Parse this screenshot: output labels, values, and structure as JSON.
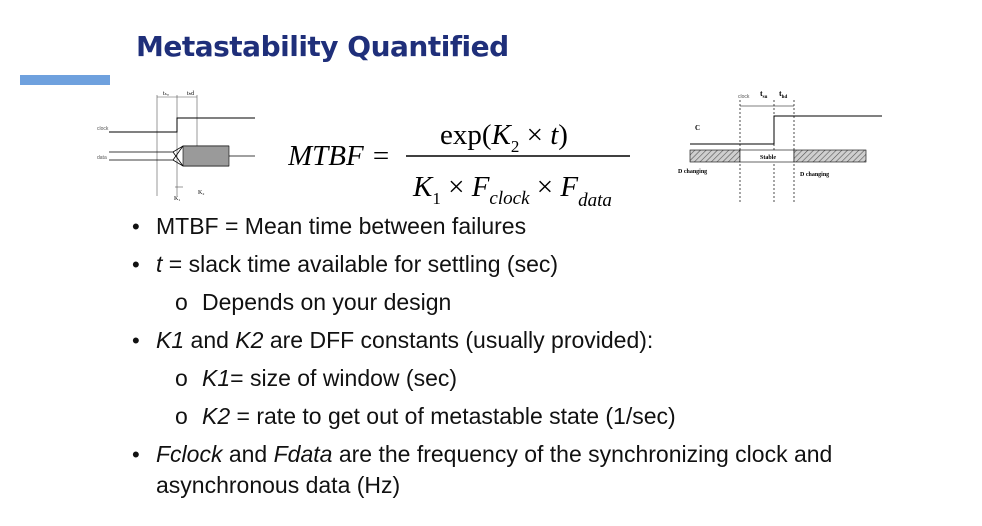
{
  "slide": {
    "title": "Metastability Quantified",
    "accent_color": "#6fa1de",
    "title_color": "#1f2f7a"
  },
  "formula": {
    "lhs": "MTBF =",
    "numerator": {
      "func": "exp(",
      "k": "K",
      "k_sub": "2",
      "op": " × ",
      "var": "t",
      "close": ")"
    },
    "denominator": {
      "k": "K",
      "k_sub": "1",
      "op1": " × ",
      "f1": "F",
      "f1_sub": "clock",
      "op2": " × ",
      "f2": "F",
      "f2_sub": "data"
    }
  },
  "left_diagram": {
    "tsu": "tₛᵤ",
    "thd": "tₕd",
    "clock_label": "clock",
    "data_label": "data",
    "k1_label": "K₁",
    "k2_label": "K₂"
  },
  "right_diagram": {
    "clock_label": "clock",
    "tsu": "t",
    "tsu_sub": "su",
    "thd": "t",
    "thd_sub": "hd",
    "c_label": "C",
    "stable_label": "Stable",
    "d_changing_left": "D changing",
    "d_changing_right": "D changing"
  },
  "bullets": [
    {
      "level": 1,
      "parts": [
        {
          "text": "MTBF = Mean time between failures",
          "italic": false
        }
      ]
    },
    {
      "level": 1,
      "parts": [
        {
          "text": "t",
          "italic": true
        },
        {
          "text": " = slack time available for settling (sec)",
          "italic": false
        }
      ]
    },
    {
      "level": 2,
      "parts": [
        {
          "text": "Depends on your design",
          "italic": false
        }
      ]
    },
    {
      "level": 1,
      "parts": [
        {
          "text": "K1",
          "italic": true
        },
        {
          "text": " and ",
          "italic": false
        },
        {
          "text": "K2",
          "italic": true
        },
        {
          "text": " are DFF constants (usually provided):",
          "italic": false
        }
      ]
    },
    {
      "level": 2,
      "parts": [
        {
          "text": "K1",
          "italic": true
        },
        {
          "text": "= size of window (sec)",
          "italic": false
        }
      ]
    },
    {
      "level": 2,
      "parts": [
        {
          "text": "K2",
          "italic": true
        },
        {
          "text": " = rate to get out of metastable state (1/sec)",
          "italic": false
        }
      ]
    },
    {
      "level": 1,
      "parts": [
        {
          "text": "Fclock",
          "italic": true
        },
        {
          "text": " and ",
          "italic": false
        },
        {
          "text": "Fdata",
          "italic": true
        },
        {
          "text": " are the frequency of the synchronizing clock and asynchronous data (Hz)",
          "italic": false
        }
      ]
    }
  ]
}
